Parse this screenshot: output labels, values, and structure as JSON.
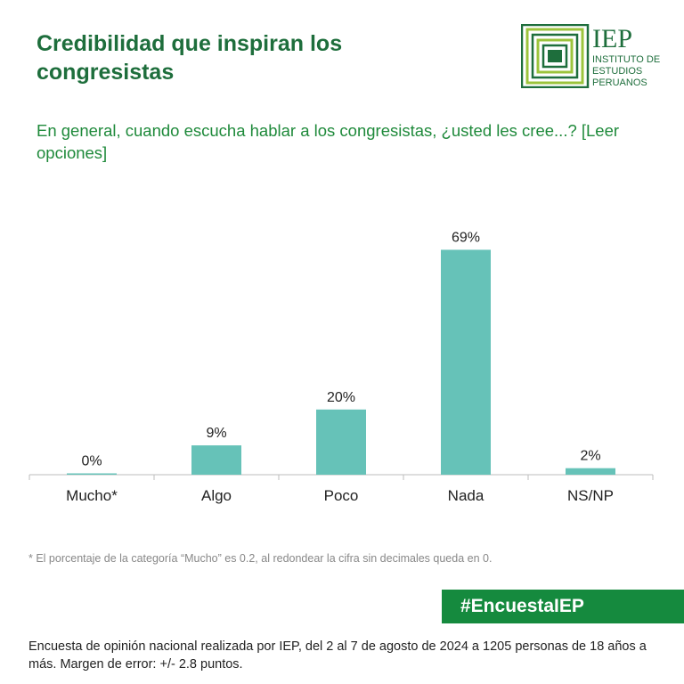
{
  "header": {
    "title": "Credibilidad que inspiran los congresistas",
    "question": "En general, cuando escucha hablar a los congresistas, ¿usted les cree...? [Leer opciones]"
  },
  "logo": {
    "acronym": "IEP",
    "line1": "INSTITUTO DE",
    "line2": "ESTUDIOS",
    "line3": "PERUANOS",
    "color": "#1e6e3c",
    "accent": "#9cc43c"
  },
  "chart_data": {
    "type": "bar",
    "categories": [
      "Mucho*",
      "Algo",
      "Poco",
      "Nada",
      "NS/NP"
    ],
    "values": [
      0,
      9,
      20,
      69,
      2
    ],
    "data_labels": [
      "0%",
      "9%",
      "20%",
      "69%",
      "2%"
    ],
    "ylim": [
      0,
      100
    ],
    "grid": false,
    "bar_color": "#66c2b8",
    "axis_color": "#bdbdbd"
  },
  "footnote": "* El porcentaje de la categoría “Mucho” es 0.2, al redondear la cifra sin decimales queda en 0.",
  "hashtag": {
    "label": "#EncuestaIEP",
    "color": "#158a3e"
  },
  "source": "Encuesta de opinión nacional realizada por IEP, del 2 al 7 de agosto de 2024 a 1205 personas de 18 años a más. Margen de error: +/- 2.8 puntos."
}
